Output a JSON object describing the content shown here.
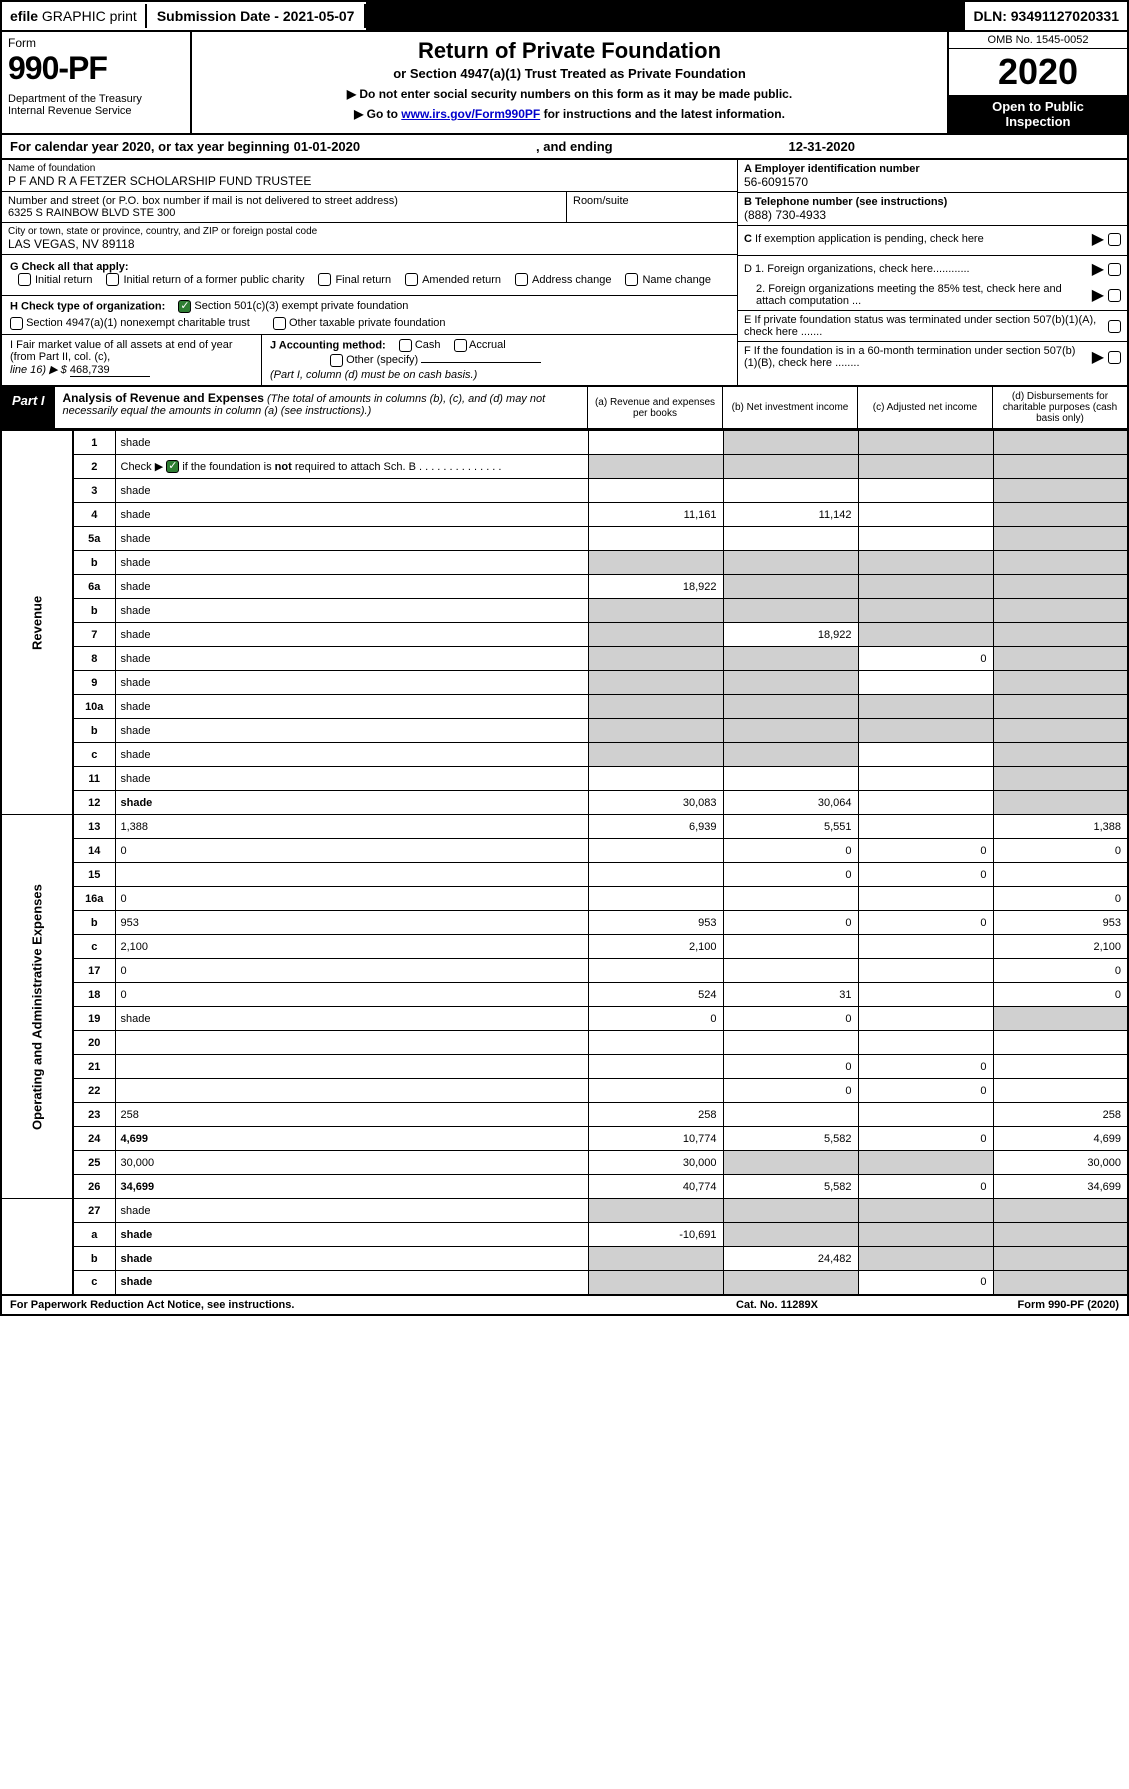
{
  "topbar": {
    "efile_prefix": "efile",
    "efile_rest": " GRAPHIC print",
    "submission": "Submission Date - 2021-05-07",
    "dln": "DLN: 93491127020331"
  },
  "header": {
    "form_word": "Form",
    "form_no": "990-PF",
    "dept": "Department of the Treasury\nInternal Revenue Service",
    "title": "Return of Private Foundation",
    "subtitle": "or Section 4947(a)(1) Trust Treated as Private Foundation",
    "note1": "▶ Do not enter social security numbers on this form as it may be made public.",
    "note2_pre": "▶ Go to ",
    "note2_link": "www.irs.gov/Form990PF",
    "note2_post": " for instructions and the latest information.",
    "omb": "OMB No. 1545-0052",
    "year": "2020",
    "open1": "Open to Public",
    "open2": "Inspection"
  },
  "calyear": {
    "prefix": "For calendar year 2020, or tax year beginning ",
    "begin": "01-01-2020",
    "mid": ", and ending ",
    "end": "12-31-2020"
  },
  "info": {
    "name_label": "Name of foundation",
    "name": "P F AND R A FETZER SCHOLARSHIP FUND TRUSTEE",
    "addr_label": "Number and street (or P.O. box number if mail is not delivered to street address)",
    "addr": "6325 S RAINBOW BLVD STE 300",
    "room_label": "Room/suite",
    "city_label": "City or town, state or province, country, and ZIP or foreign postal code",
    "city": "LAS VEGAS, NV  89118",
    "a_label": "A Employer identification number",
    "a_val": "56-6091570",
    "b_label": "B Telephone number (see instructions)",
    "b_val": "(888) 730-4933",
    "c_label": "C If exemption application is pending, check here",
    "d1": "D 1. Foreign organizations, check here............",
    "d2": "2. Foreign organizations meeting the 85% test, check here and attach computation ...",
    "e": "E  If private foundation status was terminated under section 507(b)(1)(A), check here .......",
    "f": "F  If the foundation is in a 60-month termination under section 507(b)(1)(B), check here ........"
  },
  "g": {
    "label": "G Check all that apply:",
    "o1": "Initial return",
    "o2": "Initial return of a former public charity",
    "o3": "Final return",
    "o4": "Amended return",
    "o5": "Address change",
    "o6": "Name change"
  },
  "h": {
    "label": "H Check type of organization:",
    "o1": "Section 501(c)(3) exempt private foundation",
    "o2": "Section 4947(a)(1) nonexempt charitable trust",
    "o3": "Other taxable private foundation"
  },
  "i": {
    "label": "I Fair market value of all assets at end of year (from Part II, col. (c),",
    "line": "line 16) ▶ $",
    "val": "468,739"
  },
  "j": {
    "label": "J Accounting method:",
    "o1": "Cash",
    "o2": "Accrual",
    "o3": "Other (specify)",
    "note": "(Part I, column (d) must be on cash basis.)"
  },
  "part1": {
    "label": "Part I",
    "title": "Analysis of Revenue and Expenses",
    "note": " (The total of amounts in columns (b), (c), and (d) may not necessarily equal the amounts in column (a) (see instructions).)",
    "col_a": "(a)   Revenue and expenses per books",
    "col_b": "(b)  Net investment income",
    "col_c": "(c)  Adjusted net income",
    "col_d": "(d)  Disbursements for charitable purposes (cash basis only)"
  },
  "side": {
    "rev": "Revenue",
    "exp": "Operating and Administrative Expenses"
  },
  "rows": [
    {
      "n": "1",
      "d": "shade",
      "a": "",
      "b": "shade",
      "c": "shade"
    },
    {
      "n": "2",
      "d": "shade",
      "a": "shade",
      "b": "shade",
      "c": "shade",
      "bold_not": true
    },
    {
      "n": "3",
      "d": "shade",
      "a": "",
      "b": "",
      "c": ""
    },
    {
      "n": "4",
      "d": "shade",
      "a": "11,161",
      "b": "11,142",
      "c": ""
    },
    {
      "n": "5a",
      "d": "shade",
      "a": "",
      "b": "",
      "c": ""
    },
    {
      "n": "b",
      "d": "shade",
      "a": "shade",
      "b": "shade",
      "c": "shade"
    },
    {
      "n": "6a",
      "d": "shade",
      "a": "18,922",
      "b": "shade",
      "c": "shade"
    },
    {
      "n": "b",
      "d": "shade",
      "a": "shade",
      "b": "shade",
      "c": "shade"
    },
    {
      "n": "7",
      "d": "shade",
      "a": "shade",
      "b": "18,922",
      "c": "shade"
    },
    {
      "n": "8",
      "d": "shade",
      "a": "shade",
      "b": "shade",
      "c": "0"
    },
    {
      "n": "9",
      "d": "shade",
      "a": "shade",
      "b": "shade",
      "c": ""
    },
    {
      "n": "10a",
      "d": "shade",
      "a": "shade",
      "b": "shade",
      "c": "shade"
    },
    {
      "n": "b",
      "d": "shade",
      "a": "shade",
      "b": "shade",
      "c": "shade"
    },
    {
      "n": "c",
      "d": "shade",
      "a": "shade",
      "b": "shade",
      "c": ""
    },
    {
      "n": "11",
      "d": "shade",
      "a": "",
      "b": "",
      "c": ""
    },
    {
      "n": "12",
      "d": "shade",
      "a": "30,083",
      "b": "30,064",
      "c": "",
      "bold": true
    }
  ],
  "exprows": [
    {
      "n": "13",
      "d": "1,388",
      "a": "6,939",
      "b": "5,551",
      "c": ""
    },
    {
      "n": "14",
      "d": "0",
      "a": "",
      "b": "0",
      "c": "0"
    },
    {
      "n": "15",
      "d": "",
      "a": "",
      "b": "0",
      "c": "0"
    },
    {
      "n": "16a",
      "d": "0",
      "a": "",
      "b": "",
      "c": ""
    },
    {
      "n": "b",
      "d": "953",
      "a": "953",
      "b": "0",
      "c": "0"
    },
    {
      "n": "c",
      "d": "2,100",
      "a": "2,100",
      "b": "",
      "c": ""
    },
    {
      "n": "17",
      "d": "0",
      "a": "",
      "b": "",
      "c": ""
    },
    {
      "n": "18",
      "d": "0",
      "a": "524",
      "b": "31",
      "c": ""
    },
    {
      "n": "19",
      "d": "shade",
      "a": "0",
      "b": "0",
      "c": ""
    },
    {
      "n": "20",
      "d": "",
      "a": "",
      "b": "",
      "c": ""
    },
    {
      "n": "21",
      "d": "",
      "a": "",
      "b": "0",
      "c": "0"
    },
    {
      "n": "22",
      "d": "",
      "a": "",
      "b": "0",
      "c": "0"
    },
    {
      "n": "23",
      "d": "258",
      "a": "258",
      "b": "",
      "c": ""
    },
    {
      "n": "24",
      "d": "4,699",
      "a": "10,774",
      "b": "5,582",
      "c": "0",
      "bold": true
    },
    {
      "n": "25",
      "d": "30,000",
      "a": "30,000",
      "b": "shade",
      "c": "shade"
    },
    {
      "n": "26",
      "d": "34,699",
      "a": "40,774",
      "b": "5,582",
      "c": "0",
      "bold": true
    }
  ],
  "botrows": [
    {
      "n": "27",
      "d": "shade",
      "a": "shade",
      "b": "shade",
      "c": "shade"
    },
    {
      "n": "a",
      "d": "shade",
      "a": "-10,691",
      "b": "shade",
      "c": "shade",
      "bold": true
    },
    {
      "n": "b",
      "d": "shade",
      "a": "shade",
      "b": "24,482",
      "c": "shade",
      "bold": true
    },
    {
      "n": "c",
      "d": "shade",
      "a": "shade",
      "b": "shade",
      "c": "0",
      "bold": true
    }
  ],
  "footer": {
    "left": "For Paperwork Reduction Act Notice, see instructions.",
    "mid": "Cat. No. 11289X",
    "right": "Form 990-PF (2020)"
  },
  "colors": {
    "shade": "#d0d0d0",
    "link": "#0000cc",
    "checked": "#2e7d32"
  }
}
